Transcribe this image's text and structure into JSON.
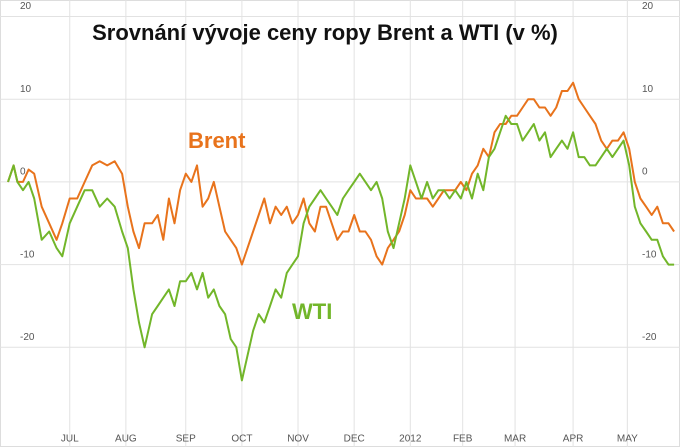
{
  "chart_data": {
    "type": "line",
    "title": "Srovnání vývoje ceny ropy Brent a WTI (v %)",
    "x": [
      0,
      3,
      5,
      8,
      11,
      14,
      18,
      22,
      26,
      29,
      33,
      37,
      41,
      45,
      49,
      53,
      57,
      61,
      64,
      67,
      70,
      73,
      77,
      80,
      83,
      86,
      89,
      92,
      95,
      98,
      101,
      104,
      107,
      110,
      113,
      116,
      119,
      122,
      125,
      128,
      131,
      134,
      137,
      140,
      143,
      146,
      149,
      152,
      155,
      158,
      161,
      164,
      167,
      170,
      173,
      176,
      179,
      182,
      185,
      188,
      191,
      194,
      197,
      200,
      203,
      206,
      209,
      212,
      215,
      218,
      221,
      224,
      227,
      230,
      233,
      236,
      239,
      242,
      245,
      248,
      251,
      254,
      257,
      260,
      263,
      266,
      269,
      272,
      275,
      278,
      281,
      284,
      287,
      290,
      293,
      296,
      299,
      302,
      305,
      308,
      311,
      314,
      317,
      320,
      323,
      326,
      329,
      332,
      335,
      338,
      341,
      344,
      347,
      350,
      353,
      356
    ],
    "series": [
      {
        "name": "Brent",
        "color": "#e8731c",
        "values": [
          0,
          2,
          0,
          0,
          1.5,
          1,
          -3,
          -5,
          -7,
          -5,
          -2,
          -2,
          0,
          2,
          2.5,
          2,
          2.5,
          1,
          -3,
          -6,
          -8,
          -5,
          -5,
          -4,
          -7,
          -2,
          -5,
          -1,
          1,
          0,
          2,
          -3,
          -2,
          0,
          -3,
          -6,
          -7,
          -8,
          -10,
          -8,
          -6,
          -4,
          -2,
          -5,
          -3,
          -4,
          -3,
          -5,
          -4,
          -2,
          -5,
          -6,
          -3,
          -3,
          -5,
          -7,
          -6,
          -6,
          -4,
          -6,
          -6,
          -7,
          -9,
          -10,
          -8,
          -7,
          -6,
          -4,
          -1,
          -2,
          -2,
          -2,
          -3,
          -2,
          -1,
          -1,
          -1,
          0,
          -1,
          1,
          2,
          4,
          3,
          6,
          7,
          7,
          8,
          8,
          9,
          10,
          10,
          9,
          9,
          8,
          9,
          11,
          11,
          12,
          10,
          9,
          8,
          7,
          5,
          4,
          5,
          5,
          6,
          4,
          0,
          -2,
          -3,
          -4,
          -3,
          -5,
          -5,
          -6
        ]
      },
      {
        "name": "WTI",
        "color": "#72b62a",
        "values": [
          0,
          2,
          0,
          -1,
          0,
          -2,
          -7,
          -6,
          -8,
          -9,
          -5,
          -3,
          -1,
          -1,
          -3,
          -2,
          -3,
          -6,
          -8,
          -13,
          -17,
          -20,
          -16,
          -15,
          -14,
          -13,
          -15,
          -12,
          -12,
          -11,
          -13,
          -11,
          -14,
          -13,
          -15,
          -16,
          -19,
          -20,
          -24,
          -21,
          -18,
          -16,
          -17,
          -15,
          -13,
          -14,
          -11,
          -10,
          -9,
          -5,
          -3,
          -2,
          -1,
          -2,
          -3,
          -4,
          -2,
          -1,
          0,
          1,
          0,
          -1,
          0,
          -2,
          -6,
          -8,
          -5,
          -2,
          2,
          0,
          -2,
          0,
          -2,
          -1,
          -1,
          -2,
          -1,
          -2,
          0,
          -2,
          1,
          -1,
          3,
          4,
          6,
          8,
          7,
          7,
          5,
          6,
          7,
          5,
          6,
          3,
          4,
          5,
          4,
          6,
          3,
          3,
          2,
          2,
          3,
          4,
          3,
          4,
          5,
          2,
          -3,
          -5,
          -6,
          -7,
          -7,
          -9,
          -10,
          -10
        ]
      }
    ],
    "xlim": [
      0,
      357
    ],
    "xticks": [
      {
        "value": 33,
        "label": "JUL"
      },
      {
        "value": 63,
        "label": "AUG"
      },
      {
        "value": 95,
        "label": "SEP"
      },
      {
        "value": 125,
        "label": "OCT"
      },
      {
        "value": 155,
        "label": "NOV"
      },
      {
        "value": 185,
        "label": "DEC"
      },
      {
        "value": 215,
        "label": "2012"
      },
      {
        "value": 243,
        "label": "FEB"
      },
      {
        "value": 271,
        "label": "MAR"
      },
      {
        "value": 302,
        "label": "APR"
      },
      {
        "value": 331,
        "label": "MAY"
      }
    ],
    "ylim": [
      -30,
      22
    ],
    "yticks": [
      -20,
      -10,
      0,
      10,
      20
    ],
    "grid": true
  }
}
